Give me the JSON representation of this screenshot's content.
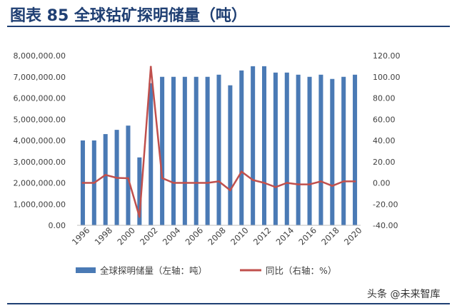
{
  "figure": {
    "title": "图表 85 全球钴矿探明储量（吨）",
    "watermark": "头条 @未来智库"
  },
  "chart_data": {
    "type": "bar+line",
    "title": "图表 85 全球钴矿探明储量（吨）",
    "categories": [
      1996,
      1997,
      1998,
      1999,
      2000,
      2001,
      2002,
      2003,
      2004,
      2005,
      2006,
      2007,
      2008,
      2009,
      2010,
      2011,
      2012,
      2013,
      2014,
      2015,
      2016,
      2017,
      2018,
      2019,
      2020
    ],
    "x_tick_labels": [
      "1996",
      "1998",
      "2000",
      "2002",
      "2004",
      "2006",
      "2008",
      "2010",
      "2012",
      "2014",
      "2016",
      "2018",
      "2020"
    ],
    "series": [
      {
        "name": "全球探明储量（左轴：吨）",
        "type": "bar",
        "axis": "left",
        "color": "#4a7ab5",
        "values": [
          4000000,
          4000000,
          4300000,
          4500000,
          4700000,
          3200000,
          6700000,
          7000000,
          7000000,
          7000000,
          7000000,
          7000000,
          7100000,
          6600000,
          7300000,
          7500000,
          7500000,
          7200000,
          7200000,
          7100000,
          7000000,
          7100000,
          6900000,
          7000000,
          7100000
        ]
      },
      {
        "name": "同比（右轴：%）",
        "type": "line",
        "axis": "right",
        "color": "#c0504d",
        "values": [
          0.0,
          0.0,
          7.5,
          4.7,
          4.4,
          -31.9,
          109.4,
          4.5,
          0.0,
          0.0,
          0.0,
          0.0,
          1.4,
          -7.0,
          10.6,
          2.7,
          0.0,
          -4.0,
          0.0,
          -1.4,
          -1.4,
          1.4,
          -2.8,
          1.4,
          1.4
        ]
      }
    ],
    "y_left": {
      "ylim": [
        0,
        8000000
      ],
      "ticks": [
        0,
        1000000,
        2000000,
        3000000,
        4000000,
        5000000,
        6000000,
        7000000,
        8000000
      ],
      "tick_labels": [
        "0.00",
        "1,000,000.00",
        "2,000,000.00",
        "3,000,000.00",
        "4,000,000.00",
        "5,000,000.00",
        "6,000,000.00",
        "7,000,000.00",
        "8,000,000.00"
      ]
    },
    "y_right": {
      "ylim": [
        -40,
        120
      ],
      "ticks": [
        -40,
        -20,
        0,
        20,
        40,
        60,
        80,
        100,
        120
      ],
      "tick_labels": [
        "-40.00",
        "-20.00",
        "0.00",
        "20.00",
        "40.00",
        "60.00",
        "80.00",
        "100.00",
        "120.00"
      ]
    },
    "grid": false,
    "legend_position": "bottom"
  }
}
